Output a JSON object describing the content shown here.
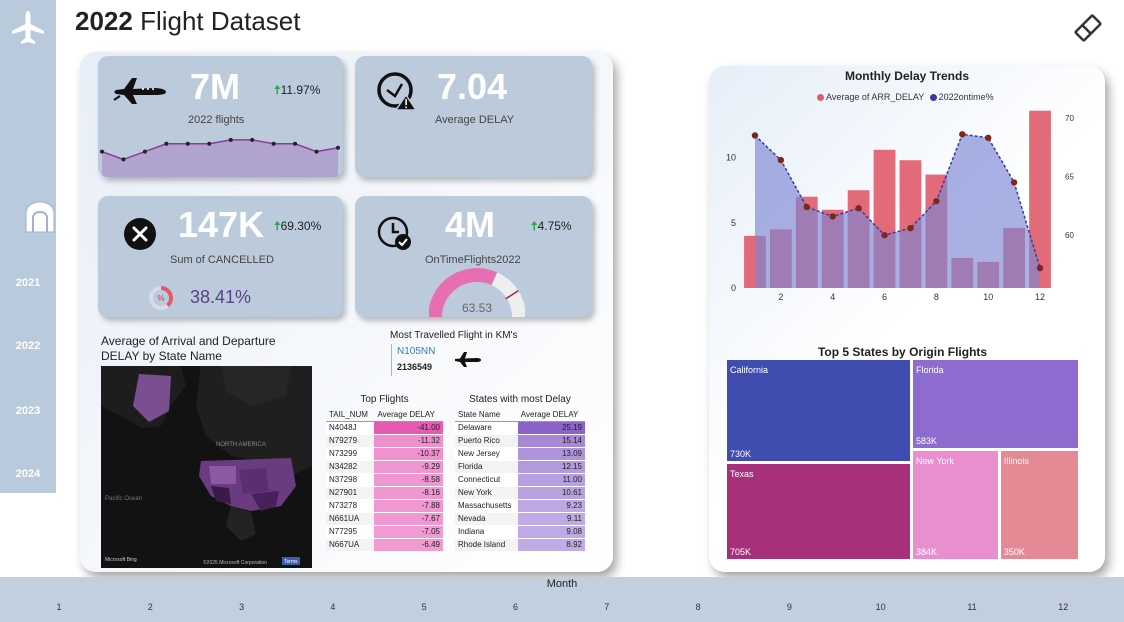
{
  "header": {
    "title_bold": "2022",
    "title_rest": " Flight Dataset"
  },
  "sidebar": {
    "years": [
      "2021",
      "2022",
      "2023",
      "2024"
    ]
  },
  "kpis": {
    "flights": {
      "value": "7M",
      "label": "2022 flights",
      "change": "11.97%",
      "spark": [
        6,
        4,
        6,
        8,
        8,
        8,
        9,
        9,
        8,
        8,
        6,
        7
      ]
    },
    "delay": {
      "value": "7.04",
      "label": "Average DELAY"
    },
    "cancelled": {
      "value": "147K",
      "label": "Sum of CANCELLED",
      "change": "69.30%",
      "rate": "38.41%",
      "rate_fraction": 0.3841
    },
    "ontime": {
      "value": "4M",
      "label": "OnTimeFlights2022",
      "change": "4.75%",
      "gauge_value": "63.53",
      "gauge_fraction": 0.6353
    }
  },
  "map": {
    "title": "Average of Arrival and Departure DELAY by State Name",
    "label_na": "NORTH AMERICA",
    "label_ocean": "Pacific Ocean",
    "attrib_left": "Microsoft Bing",
    "attrib_right": "©2025 Microsoft Corporation",
    "terms": "Terms"
  },
  "most_travelled": {
    "label": "Most Travelled Flight in KM's",
    "tail": "N105NN",
    "km": "2136549"
  },
  "top_flights": {
    "title": "Top Flights",
    "col1": "TAIL_NUM",
    "col2": "Average DELAY",
    "rows": [
      [
        "N4048J",
        "-41.00"
      ],
      [
        "N79279",
        "-11.32"
      ],
      [
        "N73299",
        "-10.37"
      ],
      [
        "N34282",
        "-9.29"
      ],
      [
        "N37298",
        "-8.58"
      ],
      [
        "N27901",
        "-8.16"
      ],
      [
        "N73278",
        "-7.88"
      ],
      [
        "N661UA",
        "-7.67"
      ],
      [
        "N77295",
        "-7.05"
      ],
      [
        "N667UA",
        "-6.49"
      ]
    ]
  },
  "state_delay": {
    "title": "States with most Delay",
    "col1": "State Name",
    "col2": "Average DELAY",
    "rows": [
      [
        "Delaware",
        "25.19"
      ],
      [
        "Puerto Rico",
        "15.14"
      ],
      [
        "New Jersey",
        "13.09"
      ],
      [
        "Florida",
        "12.15"
      ],
      [
        "Connecticut",
        "11.00"
      ],
      [
        "New York",
        "10.61"
      ],
      [
        "Massachusetts",
        "9.23"
      ],
      [
        "Nevada",
        "9.11"
      ],
      [
        "Indiana",
        "9.08"
      ],
      [
        "Rhode Island",
        "8.92"
      ]
    ]
  },
  "chart_data": [
    {
      "type": "bar",
      "title": "Monthly Delay Trends",
      "legend": [
        "Average of ARR_DELAY",
        "2022ontime%"
      ],
      "x": [
        1,
        2,
        3,
        4,
        5,
        6,
        7,
        8,
        9,
        10,
        11,
        12
      ],
      "x_ticks": [
        "2",
        "4",
        "6",
        "8",
        "10",
        "12"
      ],
      "y_ticks": [
        "0",
        "5",
        "10"
      ],
      "y2_ticks": [
        "60",
        "65",
        "70"
      ],
      "ylim": [
        0,
        13.5
      ],
      "y2lim": [
        55.5,
        70.5
      ],
      "series": [
        {
          "name": "Average of ARR_DELAY",
          "axis": "left",
          "values": [
            4.0,
            4.5,
            7.0,
            6.0,
            7.5,
            10.6,
            9.8,
            8.7,
            2.3,
            2.0,
            4.6,
            13.6
          ]
        },
        {
          "name": "2022ontime%",
          "axis": "right",
          "values": [
            68.5,
            66.4,
            62.4,
            61.6,
            62.3,
            60.0,
            60.6,
            62.9,
            68.6,
            68.3,
            64.5,
            57.2
          ]
        }
      ],
      "colors": {
        "bar": "#e05a6a",
        "line": "#3a3aa0",
        "area": "#7b86d3",
        "marker": "#7a2a1a"
      }
    },
    {
      "type": "treemap",
      "title": "Top 5 States by Origin Flights",
      "categories": [
        "California",
        "Florida",
        "Texas",
        "New York",
        "Illinois"
      ],
      "values": [
        730,
        583,
        705,
        384,
        350
      ],
      "labels": [
        "730K",
        "583K",
        "705K",
        "384K",
        "350K"
      ],
      "colors": [
        "#3f4db0",
        "#8e6ccf",
        "#a8307a",
        "#e98fcf",
        "#e38a95"
      ]
    }
  ],
  "month_slicer": {
    "title": "Month",
    "months": [
      "1",
      "2",
      "3",
      "4",
      "5",
      "6",
      "7",
      "8",
      "9",
      "10",
      "11",
      "12"
    ]
  }
}
